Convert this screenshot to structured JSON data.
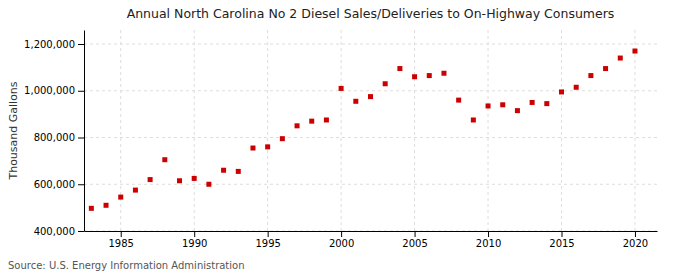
{
  "chart_data": {
    "type": "scatter",
    "title": "Annual North Carolina No 2 Diesel Sales/Deliveries to On-Highway Consumers",
    "ylabel": "Thousand Gallons",
    "source": "Source: U.S. Energy Information Administration",
    "x": [
      1983,
      1984,
      1985,
      1986,
      1987,
      1988,
      1989,
      1990,
      1991,
      1992,
      1993,
      1994,
      1995,
      1996,
      1997,
      1998,
      1999,
      2000,
      2001,
      2002,
      2003,
      2004,
      2005,
      2006,
      2007,
      2008,
      2009,
      2010,
      2011,
      2012,
      2013,
      2014,
      2015,
      2016,
      2017,
      2018,
      2019,
      2020
    ],
    "values": [
      497000,
      510000,
      545000,
      575000,
      620000,
      705000,
      615000,
      625000,
      600000,
      660000,
      655000,
      755000,
      760000,
      795000,
      850000,
      870000,
      875000,
      1010000,
      955000,
      975000,
      1030000,
      1095000,
      1060000,
      1065000,
      1075000,
      960000,
      875000,
      935000,
      940000,
      915000,
      950000,
      945000,
      995000,
      1015000,
      1065000,
      1095000,
      1140000,
      1170000
    ],
    "color": "#cc0000",
    "marker": "square",
    "xlim": [
      1982.5,
      2021.5
    ],
    "xticks": [
      1985,
      1990,
      1995,
      2000,
      2005,
      2010,
      2015,
      2020
    ],
    "ylim": [
      400000,
      1260000
    ],
    "yticks": [
      {
        "value": 400000,
        "label": "400,000"
      },
      {
        "value": 600000,
        "label": "600,000"
      },
      {
        "value": 800000,
        "label": "800,000"
      },
      {
        "value": 1000000,
        "label": "1,000,000"
      },
      {
        "value": 1200000,
        "label": "1,200,000"
      }
    ],
    "grid": true
  }
}
